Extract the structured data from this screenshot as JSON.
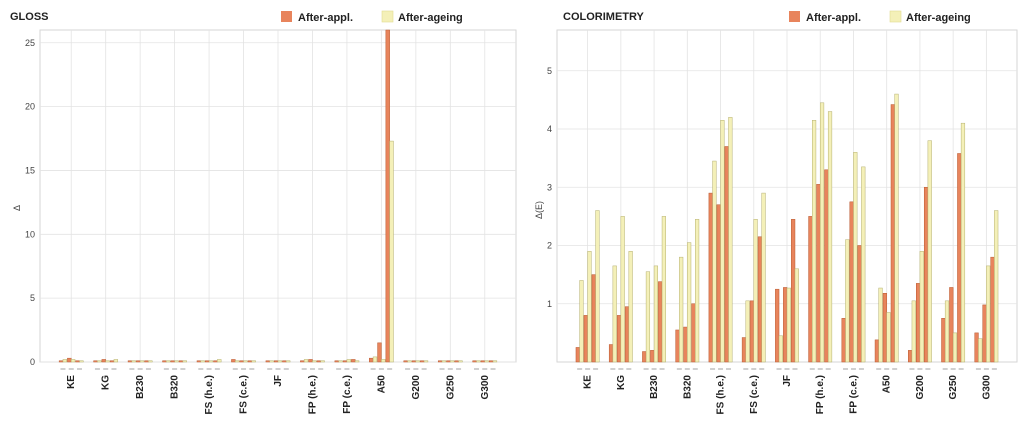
{
  "colors": {
    "after_appl": "#e8845c",
    "after_appl_edge": "#b85a30",
    "after_ageing": "#f4f0b8",
    "after_ageing_edge": "#b5b070",
    "grid": "#e3e3e3",
    "frame": "#d6d6d6"
  },
  "legend": {
    "after_appl": "After-appl.",
    "after_ageing": "After-ageing"
  },
  "chart_data": [
    {
      "type": "bar",
      "title": "GLOSS",
      "ylabel": "Δ",
      "ylim": [
        0,
        26
      ],
      "yticks": [
        0,
        5,
        10,
        15,
        20,
        25
      ],
      "categories": [
        "KE",
        "KG",
        "B230",
        "B320",
        "FS (h.e.)",
        "FS (c.e.)",
        "JF",
        "FP (h.e.)",
        "FP (c.e.)",
        "A50",
        "G200",
        "G250",
        "G300"
      ],
      "series": [
        {
          "name": "After-appl.",
          "values": [
            [
              0.1,
              0.3,
              0.1
            ],
            [
              0.1,
              0.2,
              0.1
            ],
            [
              0.1,
              0.1,
              0.1
            ],
            [
              0.1,
              0.1,
              0.1
            ],
            [
              0.1,
              0.1,
              0.1
            ],
            [
              0.2,
              0.1,
              0.1
            ],
            [
              0.1,
              0.1,
              0.1
            ],
            [
              0.1,
              0.2,
              0.1
            ],
            [
              0.1,
              0.1,
              0.2
            ],
            [
              0.3,
              1.5,
              26.0
            ],
            [
              0.1,
              0.1,
              0.1
            ],
            [
              0.1,
              0.1,
              0.1
            ],
            [
              0.1,
              0.1,
              0.1
            ]
          ]
        },
        {
          "name": "After-ageing",
          "values": [
            [
              0.2,
              0.2,
              0.1
            ],
            [
              0.1,
              0.1,
              0.2
            ],
            [
              0.1,
              0.1,
              0.1
            ],
            [
              0.1,
              0.1,
              0.1
            ],
            [
              0.1,
              0.1,
              0.2
            ],
            [
              0.1,
              0.1,
              0.1
            ],
            [
              0.1,
              0.1,
              0.1
            ],
            [
              0.2,
              0.1,
              0.1
            ],
            [
              0.1,
              0.2,
              0.1
            ],
            [
              0.4,
              0.2,
              17.3
            ],
            [
              0.1,
              0.1,
              0.1
            ],
            [
              0.1,
              0.1,
              0.1
            ],
            [
              0.1,
              0.1,
              0.1
            ]
          ]
        }
      ],
      "legend_position": "top-right",
      "grid": true
    },
    {
      "type": "bar",
      "title": "COLORIMETRY",
      "ylabel": "Δ(E)",
      "ylim": [
        0,
        5.7
      ],
      "yticks": [
        1,
        2,
        3,
        4,
        5
      ],
      "categories": [
        "KE",
        "KG",
        "B230",
        "B320",
        "FS (h.e.)",
        "FS (c.e.)",
        "JF",
        "FP (h.e.)",
        "FP (c.e.)",
        "A50",
        "G200",
        "G250",
        "G300"
      ],
      "series": [
        {
          "name": "After-appl.",
          "values": [
            [
              0.25,
              0.8,
              1.5
            ],
            [
              0.3,
              0.8,
              0.95
            ],
            [
              0.18,
              0.2,
              1.38
            ],
            [
              0.55,
              0.6,
              1.0
            ],
            [
              2.9,
              2.7,
              3.7
            ],
            [
              0.42,
              1.05,
              2.15
            ],
            [
              1.25,
              1.28,
              2.45
            ],
            [
              2.5,
              3.05,
              3.3
            ],
            [
              0.75,
              2.75,
              2.0
            ],
            [
              0.38,
              1.18,
              4.42
            ],
            [
              0.2,
              1.35,
              3.0
            ],
            [
              0.75,
              1.28,
              3.58
            ],
            [
              0.5,
              0.98,
              1.8
            ]
          ]
        },
        {
          "name": "After-ageing",
          "values": [
            [
              1.4,
              1.9,
              2.6
            ],
            [
              1.65,
              2.5,
              1.9
            ],
            [
              1.55,
              1.65,
              2.5
            ],
            [
              1.8,
              2.05,
              2.45
            ],
            [
              3.45,
              4.15,
              4.2
            ],
            [
              1.05,
              2.45,
              2.9
            ],
            [
              0.45,
              1.27,
              1.6
            ],
            [
              4.15,
              4.45,
              4.3
            ],
            [
              2.1,
              3.6,
              3.35
            ],
            [
              1.27,
              0.85,
              4.6
            ],
            [
              1.05,
              1.9,
              3.8
            ],
            [
              1.05,
              0.5,
              4.1
            ],
            [
              0.4,
              1.65,
              2.6
            ]
          ]
        }
      ],
      "legend_position": "top-right",
      "grid": true
    }
  ]
}
